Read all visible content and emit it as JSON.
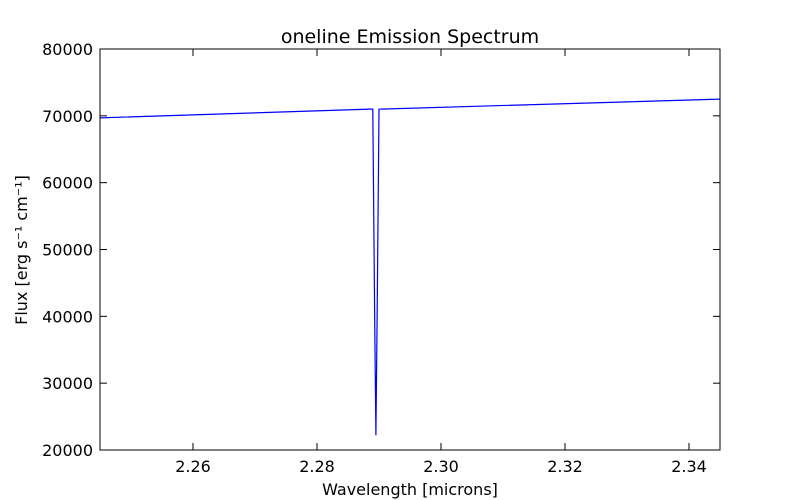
{
  "chart_data": {
    "type": "line",
    "title": "oneline Emission Spectrum",
    "xlabel": "Wavelength  [microns]",
    "ylabel": "Flux  [erg s⁻¹ cm⁻¹]",
    "xlim": [
      2.245,
      2.345
    ],
    "ylim": [
      20000,
      80000
    ],
    "xticks": [
      "2.26",
      "2.28",
      "2.30",
      "2.32",
      "2.34"
    ],
    "xtick_values": [
      2.26,
      2.28,
      2.3,
      2.32,
      2.34
    ],
    "yticks": [
      "20000",
      "30000",
      "40000",
      "50000",
      "60000",
      "70000",
      "80000"
    ],
    "ytick_values": [
      20000,
      30000,
      40000,
      50000,
      60000,
      70000,
      80000
    ],
    "grid": false,
    "series": [
      {
        "color": "#0000ff",
        "x": [
          2.245,
          2.2885,
          2.289,
          2.2893,
          2.2895,
          2.2897,
          2.29,
          2.345
        ],
        "y": [
          69700,
          71000,
          71000,
          40000,
          22200,
          40000,
          71000,
          72500
        ]
      }
    ]
  }
}
